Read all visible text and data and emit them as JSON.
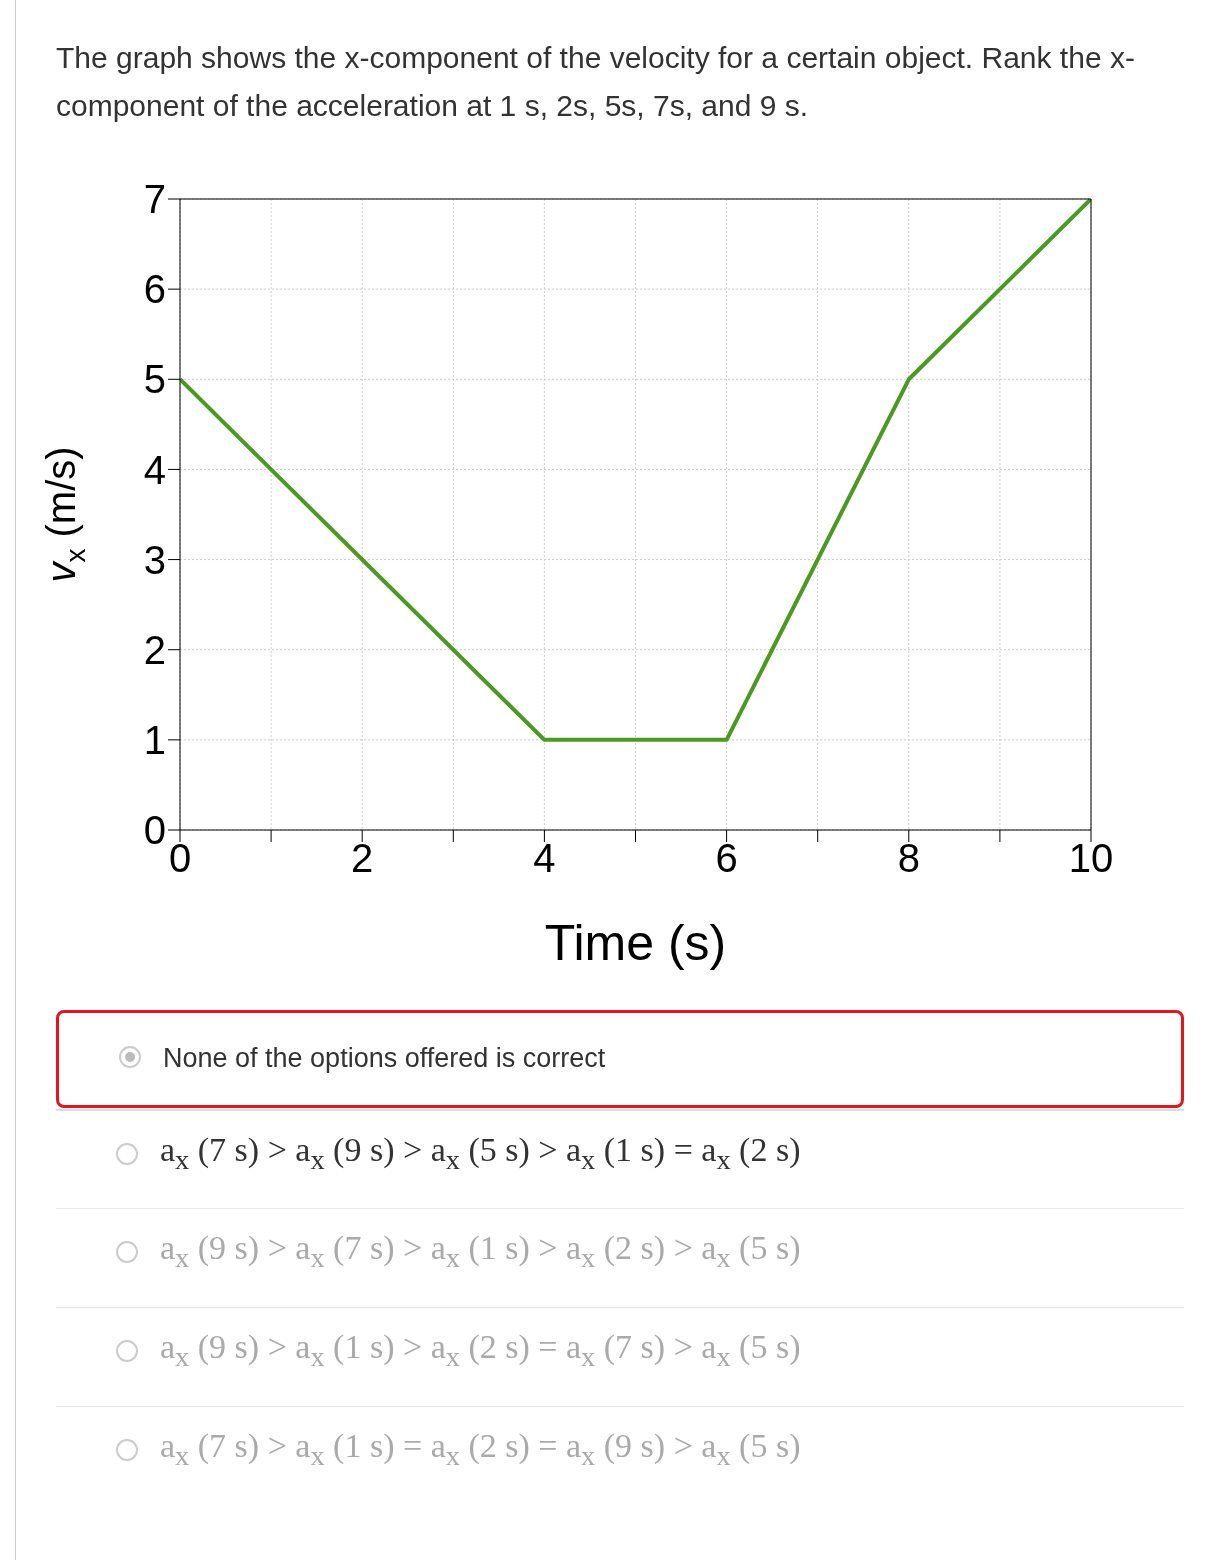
{
  "chart_data": {
    "type": "line",
    "title": "The graph shows the x-component of the velocity for a certain object. Rank the x-component of the acceleration at 1 s, 2s, 5s, 7s, and 9 s.",
    "xlabel": "Time (s)",
    "ylabel": "v$_{x}$ (m/s)",
    "x": [
      0,
      4,
      6,
      8,
      10
    ],
    "series": [
      {
        "color": "#4a9a1f",
        "values": [
          5,
          1,
          1,
          5,
          7
        ]
      }
    ],
    "xlim": [
      0,
      10
    ],
    "xticks": [
      0,
      {
        "value": 1,
        "label": null
      },
      2,
      {
        "value": 3,
        "label": null
      },
      4,
      {
        "value": 5,
        "label": null
      },
      6,
      {
        "value": 7,
        "label": null
      },
      8,
      {
        "value": 9,
        "label": null
      },
      10
    ],
    "ylim": [
      0,
      7
    ],
    "yticks": [
      0,
      1,
      2,
      3,
      4,
      5,
      6,
      7
    ],
    "grid": true,
    "marker": "none",
    "line_style": "solid",
    "legend": false,
    "annotations": [
      "None of the options offered is correct",
      "a$_{x}$ (7 s) > a$_{x}$ (9 s) > a$_{x}$ (5 s) > a$_{x}$ (1 s) = a$_{x}$ (2 s)",
      "a$_{x}$ (9 s) > a$_{x}$ (7 s) > a$_{x}$ (1 s) > a$_{x}$ (2 s) > a$_{x}$ (5 s)",
      "a$_{x}$ (9 s) > a$_{x}$ (1 s) > a$_{x}$ (2 s) = a$_{x}$ (7 s) > a$_{x}$ (5 s)",
      "a$_{x}$ (7 s) > a$_{x}$ (1 s) = a$_{x}$ (2 s) = a$_{x}$ (9 s) > a$_{x}$ (5 s)"
    ]
  }
}
